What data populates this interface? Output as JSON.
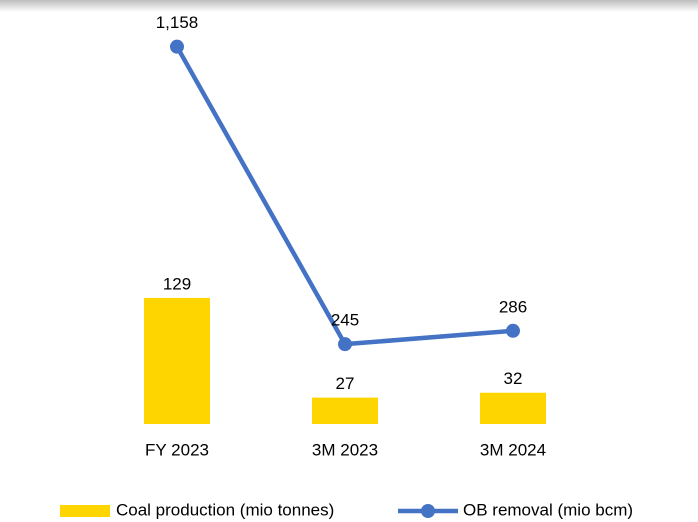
{
  "chart_data": {
    "type": "bar-line",
    "categories": [
      "FY 2023",
      "3M 2023",
      "3M 2024"
    ],
    "series": [
      {
        "name": "Coal production (mio tonnes)",
        "type": "bar",
        "color": "#ffd500",
        "values": [
          129,
          27,
          32
        ]
      },
      {
        "name": "OB removal (mio bcm)",
        "type": "line",
        "axis": "y2",
        "color": "#4472c4",
        "values": [
          1158,
          245,
          286
        ],
        "value_labels": [
          "1,158",
          "245",
          "286"
        ]
      }
    ],
    "ylim": [
      0,
      400
    ],
    "y2lim": [
      0,
      1200
    ],
    "legend": "bottom"
  }
}
